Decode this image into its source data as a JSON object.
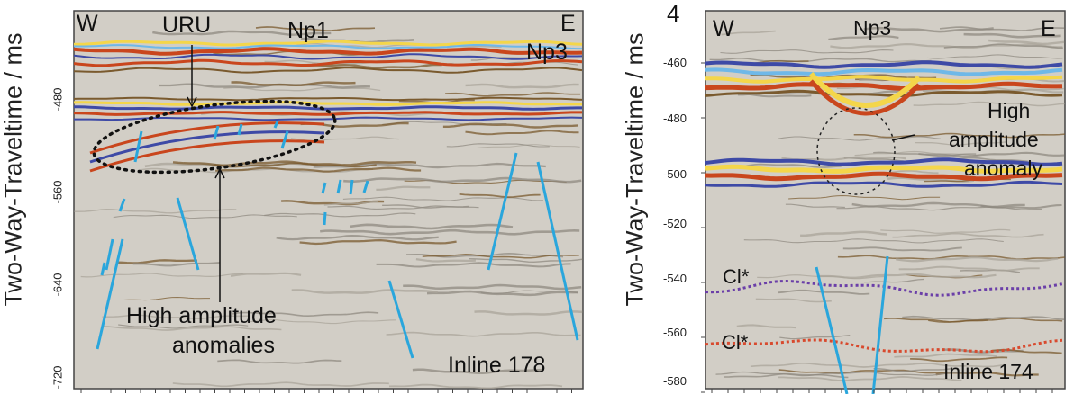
{
  "left_panel": {
    "y_axis_title": "Two-Way-Traveltime / ms",
    "y_ticks": [
      "-480",
      "-560",
      "-640",
      "-720"
    ],
    "labels": {
      "west": "W",
      "east": "E",
      "uru": "URU",
      "np1": "Np1",
      "np3": "Np3",
      "anomalies_line1": "High amplitude",
      "anomalies_line2": "anomalies",
      "inline": "Inline 178"
    }
  },
  "right_panel": {
    "y_axis_title": "Two-Way-Traveltime / ms",
    "top_marker": "4",
    "y_ticks": [
      "-460",
      "-480",
      "-500",
      "-520",
      "-540",
      "-560",
      "-580"
    ],
    "labels": {
      "west": "W",
      "east": "E",
      "np3": "Np3",
      "anomaly_line1": "High",
      "anomaly_line2": "amplitude",
      "anomaly_line3": "anomaly",
      "cl_upper": "Cl*",
      "cl_lower": "Cl*",
      "inline": "Inline 174"
    }
  },
  "colors": {
    "seismic_background": "#d2cec6",
    "reflector_red": "#c9461d",
    "reflector_yellow": "#f4d64a",
    "reflector_blue": "#3e4aa6",
    "reflector_brown": "#7a5a2e",
    "fault_blue": "#2aa6dc",
    "horizon_purple": "#6b3fa8",
    "horizon_red": "#d84a2e"
  }
}
